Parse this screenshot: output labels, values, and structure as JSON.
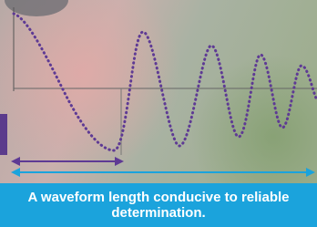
{
  "caption": "A waveform length conducive to reliable determination."
}
